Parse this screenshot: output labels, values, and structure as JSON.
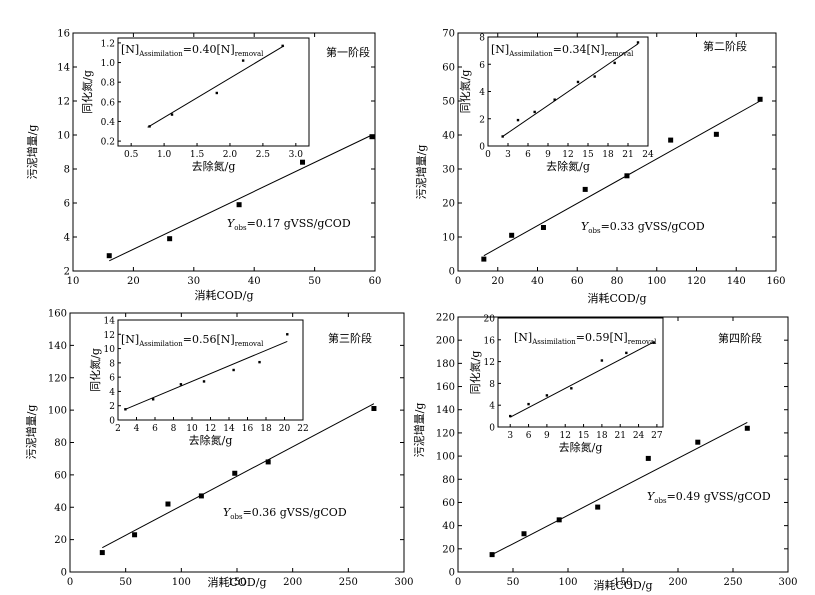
{
  "chart_data": [
    {
      "type": "scatter",
      "stage_label": "第一阶段",
      "xlabel": "消耗COD/g",
      "ylabel": "污泥增量/g",
      "xlim": [
        10,
        60
      ],
      "xticks": [
        10,
        20,
        30,
        40,
        50,
        60
      ],
      "ylim": [
        2,
        16
      ],
      "yticks": [
        2,
        4,
        6,
        8,
        10,
        12,
        14,
        16
      ],
      "points": [
        [
          16,
          2.9
        ],
        [
          26,
          3.9
        ],
        [
          37.5,
          5.9
        ],
        [
          48,
          8.4
        ],
        [
          59.5,
          9.9
        ]
      ],
      "fit_line": [
        [
          16,
          2.6
        ],
        [
          59.5,
          10.0
        ]
      ],
      "equation": {
        "Y": "Y",
        "sub": "obs",
        "text": "=0.17 gVSS/gCOD"
      },
      "inset": {
        "type": "scatter",
        "xlabel": "去除氮/g",
        "ylabel": "同化氮/g",
        "xlim": [
          0.3,
          3.2
        ],
        "xticks": [
          0.5,
          1.0,
          1.5,
          2.0,
          2.5,
          3.0
        ],
        "ylim": [
          0.15,
          1.25
        ],
        "yticks": [
          0.2,
          0.4,
          0.6,
          0.8,
          1.0,
          1.2
        ],
        "points": [
          [
            0.78,
            0.35
          ],
          [
            1.12,
            0.47
          ],
          [
            1.8,
            0.69
          ],
          [
            2.2,
            1.02
          ],
          [
            2.8,
            1.17
          ]
        ],
        "fit_line": [
          [
            0.75,
            0.34
          ],
          [
            2.82,
            1.17
          ]
        ],
        "equation": {
          "pre": "[N]",
          "sub1": "Assimilation",
          "mid": "=0.40[N]",
          "sub2": "removal"
        }
      }
    },
    {
      "type": "scatter",
      "stage_label": "第二阶段",
      "xlabel": "消耗COD/g",
      "ylabel": "污泥增量/g",
      "xlim": [
        0,
        160
      ],
      "xticks": [
        0,
        20,
        40,
        60,
        80,
        100,
        120,
        140,
        160
      ],
      "ylim": [
        0,
        70
      ],
      "yticks": [
        0,
        10,
        20,
        30,
        40,
        50,
        60,
        70
      ],
      "points": [
        [
          13,
          3.5
        ],
        [
          27,
          10.5
        ],
        [
          43,
          12.8
        ],
        [
          64,
          24
        ],
        [
          85,
          28
        ],
        [
          107,
          38.5
        ],
        [
          130,
          40.2
        ],
        [
          152,
          50.5
        ]
      ],
      "fit_line": [
        [
          13,
          4.5
        ],
        [
          152,
          50
        ]
      ],
      "equation": {
        "Y": "Y",
        "sub": "obs",
        "text": "=0.33 gVSS/gCOD"
      },
      "inset": {
        "type": "scatter",
        "xlabel": "去除氮/g",
        "ylabel": "同化氮/g",
        "xlim": [
          0,
          24
        ],
        "xticks": [
          0,
          3,
          6,
          9,
          12,
          15,
          18,
          21,
          24
        ],
        "ylim": [
          0,
          8
        ],
        "yticks": [
          0,
          2,
          4,
          6,
          8
        ],
        "points": [
          [
            2.2,
            0.7
          ],
          [
            4.5,
            1.9
          ],
          [
            7,
            2.5
          ],
          [
            10,
            3.4
          ],
          [
            13.5,
            4.7
          ],
          [
            16,
            5.1
          ],
          [
            19,
            6.1
          ],
          [
            22.5,
            7.6
          ]
        ],
        "fit_line": [
          [
            2.2,
            0.7
          ],
          [
            22.5,
            7.5
          ]
        ],
        "equation": {
          "pre": "[N]",
          "sub1": "Assimilation",
          "mid": "=0.34[N]",
          "sub2": "removal"
        }
      }
    },
    {
      "type": "scatter",
      "stage_label": "第三阶段",
      "xlabel": "消耗COD/g",
      "ylabel": "污泥增量/g",
      "xlim": [
        0,
        300
      ],
      "xticks": [
        0,
        50,
        100,
        150,
        200,
        250,
        300
      ],
      "ylim": [
        0,
        160
      ],
      "yticks": [
        0,
        20,
        40,
        60,
        80,
        100,
        120,
        140,
        160
      ],
      "points": [
        [
          29,
          12
        ],
        [
          58,
          23
        ],
        [
          88,
          42
        ],
        [
          118,
          47
        ],
        [
          148,
          61
        ],
        [
          178,
          68
        ],
        [
          273,
          101
        ]
      ],
      "fit_line": [
        [
          29,
          15
        ],
        [
          273,
          104
        ]
      ],
      "equation": {
        "Y": "Y",
        "sub": "obs",
        "text": "=0.36 gVSS/gCOD"
      },
      "inset": {
        "type": "scatter",
        "xlabel": "去除氮/g",
        "ylabel": "同化氮/g",
        "xlim": [
          2,
          22
        ],
        "xticks": [
          2,
          4,
          6,
          8,
          10,
          12,
          14,
          16,
          18,
          20,
          22
        ],
        "ylim": [
          0,
          14
        ],
        "yticks": [
          0,
          2,
          4,
          6,
          8,
          10,
          12,
          14
        ],
        "points": [
          [
            2.8,
            1.5
          ],
          [
            5.8,
            2.9
          ],
          [
            8.8,
            5.0
          ],
          [
            11.3,
            5.4
          ],
          [
            14.5,
            7.0
          ],
          [
            17.3,
            8.1
          ],
          [
            20.3,
            12.0
          ]
        ],
        "fit_line": [
          [
            2.8,
            1.5
          ],
          [
            20.3,
            11.0
          ]
        ],
        "equation": {
          "pre": "[N]",
          "sub1": "Assimilation",
          "mid": "=0.56[N]",
          "sub2": "removal"
        }
      }
    },
    {
      "type": "scatter",
      "stage_label": "第四阶段",
      "xlabel": "消耗COD/g",
      "ylabel": "污泥增量/g",
      "xlim": [
        0,
        300
      ],
      "xticks": [
        0,
        50,
        100,
        150,
        200,
        250,
        300
      ],
      "ylim": [
        0,
        220
      ],
      "yticks": [
        0,
        20,
        40,
        60,
        80,
        100,
        120,
        140,
        160,
        180,
        200,
        220
      ],
      "points": [
        [
          31,
          15
        ],
        [
          60,
          33
        ],
        [
          92,
          45
        ],
        [
          127,
          56
        ],
        [
          173,
          98
        ],
        [
          218,
          112
        ],
        [
          263,
          124
        ]
      ],
      "fit_line": [
        [
          31,
          15
        ],
        [
          263,
          129
        ]
      ],
      "equation": {
        "Y": "Y",
        "sub": "obs",
        "text": "=0.49 gVSS/gCOD"
      },
      "inset": {
        "type": "scatter",
        "xlabel": "去除氮/g",
        "ylabel": "同化氮/g",
        "xlim": [
          1,
          28
        ],
        "xticks": [
          3,
          6,
          9,
          12,
          15,
          18,
          21,
          24,
          27
        ],
        "ylim": [
          0,
          20
        ],
        "yticks": [
          0,
          4,
          8,
          12,
          16,
          20
        ],
        "points": [
          [
            3,
            2.0
          ],
          [
            6,
            4.2
          ],
          [
            9,
            5.8
          ],
          [
            13,
            7.1
          ],
          [
            18,
            12.2
          ],
          [
            22,
            13.6
          ],
          [
            26.5,
            15.5
          ]
        ],
        "fit_line": [
          [
            3,
            1.8
          ],
          [
            26.5,
            15.6
          ]
        ],
        "equation": {
          "pre": "[N]",
          "sub1": "Assimilation",
          "mid": "=0.59[N]",
          "sub2": "removal"
        }
      }
    }
  ]
}
